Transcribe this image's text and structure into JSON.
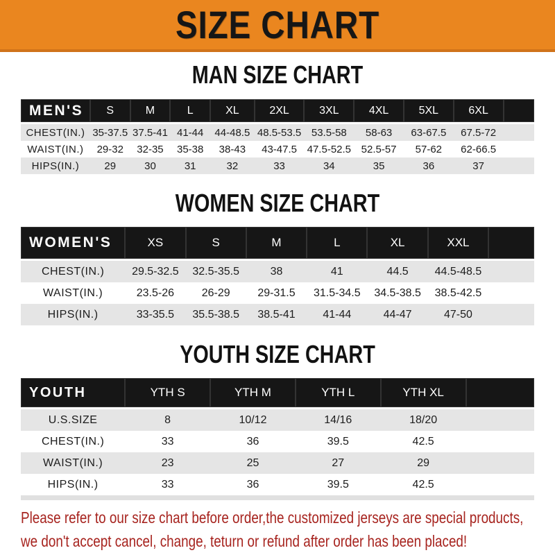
{
  "banner": {
    "title": "SIZE CHART",
    "bg_color": "#EA861F"
  },
  "sections": [
    {
      "heading": "MAN SIZE CHART",
      "table": {
        "header_label": "MEN'S",
        "columns": [
          "S",
          "M",
          "L",
          "XL",
          "2XL",
          "3XL",
          "4XL",
          "5XL",
          "6XL"
        ],
        "rows": [
          {
            "label": "CHEST(IN.)",
            "values": [
              "35-37.5",
              "37.5-41",
              "41-44",
              "44-48.5",
              "48.5-53.5",
              "53.5-58",
              "58-63",
              "63-67.5",
              "67.5-72"
            ]
          },
          {
            "label": "WAIST(IN.)",
            "values": [
              "29-32",
              "32-35",
              "35-38",
              "38-43",
              "43-47.5",
              "47.5-52.5",
              "52.5-57",
              "57-62",
              "62-66.5"
            ]
          },
          {
            "label": "HIPS(IN.)",
            "values": [
              "29",
              "30",
              "31",
              "32",
              "33",
              "34",
              "35",
              "36",
              "37"
            ]
          }
        ]
      }
    },
    {
      "heading": "WOMEN SIZE CHART",
      "table": {
        "header_label": "WOMEN'S",
        "columns": [
          "XS",
          "S",
          "M",
          "L",
          "XL",
          "XXL"
        ],
        "rows": [
          {
            "label": "CHEST(IN.)",
            "values": [
              "29.5-32.5",
              "32.5-35.5",
              "38",
              "41",
              "44.5",
              "44.5-48.5"
            ]
          },
          {
            "label": "WAIST(IN.)",
            "values": [
              "23.5-26",
              "26-29",
              "29-31.5",
              "31.5-34.5",
              "34.5-38.5",
              "38.5-42.5"
            ]
          },
          {
            "label": "HIPS(IN.)",
            "values": [
              "33-35.5",
              "35.5-38.5",
              "38.5-41",
              "41-44",
              "44-47",
              "47-50"
            ]
          }
        ]
      }
    },
    {
      "heading": "YOUTH SIZE CHART",
      "table": {
        "header_label": "YOUTH",
        "columns": [
          "YTH S",
          "YTH M",
          "YTH L",
          "YTH XL"
        ],
        "rows": [
          {
            "label": "U.S.SIZE",
            "values": [
              "8",
              "10/12",
              "14/16",
              "18/20"
            ]
          },
          {
            "label": "CHEST(IN.)",
            "values": [
              "33",
              "36",
              "39.5",
              "42.5"
            ]
          },
          {
            "label": "WAIST(IN.)",
            "values": [
              "23",
              "25",
              "27",
              "29"
            ]
          },
          {
            "label": "HIPS(IN.)",
            "values": [
              "33",
              "36",
              "39.5",
              "42.5"
            ]
          }
        ]
      }
    }
  ],
  "footer": {
    "line1": "Please refer to our size chart before order,the customized jerseys are special products,",
    "line2": "we don't accept cancel, change, teturn or refund after order has been placed!",
    "text_color": "#A7241F"
  }
}
